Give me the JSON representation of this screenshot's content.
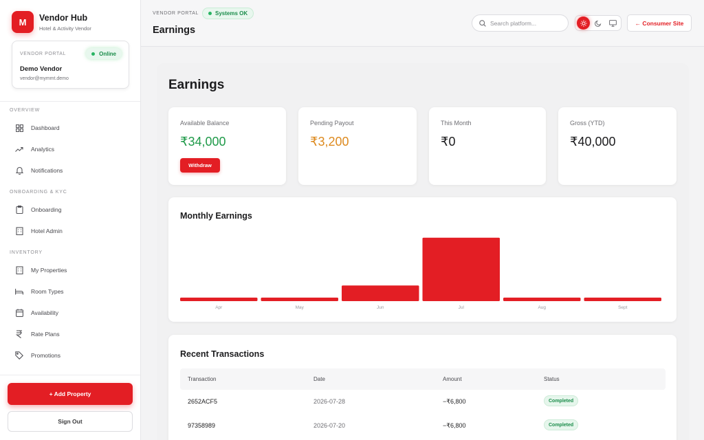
{
  "brand": {
    "logo_letter": "M",
    "name": "Vendor Hub",
    "subtitle": "Hotel & Activity Vendor"
  },
  "vendor_card": {
    "label": "VENDOR PORTAL",
    "status": "Online",
    "name": "Demo Vendor",
    "email": "vendor@mymmt.demo"
  },
  "sidebar": {
    "sections": [
      {
        "title": "OVERVIEW",
        "items": [
          {
            "label": "Dashboard",
            "icon": "grid-icon"
          },
          {
            "label": "Analytics",
            "icon": "trend-icon"
          },
          {
            "label": "Notifications",
            "icon": "bell-icon"
          }
        ]
      },
      {
        "title": "ONBOARDING & KYC",
        "items": [
          {
            "label": "Onboarding",
            "icon": "clipboard-icon"
          },
          {
            "label": "Hotel Admin",
            "icon": "building-icon"
          }
        ]
      },
      {
        "title": "INVENTORY",
        "items": [
          {
            "label": "My Properties",
            "icon": "building-icon"
          },
          {
            "label": "Room Types",
            "icon": "bed-icon"
          },
          {
            "label": "Availability",
            "icon": "calendar-icon"
          },
          {
            "label": "Rate Plans",
            "icon": "rupee-icon"
          },
          {
            "label": "Promotions",
            "icon": "tag-icon"
          }
        ]
      }
    ],
    "add_button": "+ Add Property",
    "signout_button": "Sign Out"
  },
  "header": {
    "portal_label": "VENDOR PORTAL",
    "status": "Systems OK",
    "title": "Earnings",
    "search_placeholder": "Search platform...",
    "theme_modes": [
      "light",
      "dark",
      "system"
    ],
    "active_theme": "light",
    "consumer_button": "← Consumer Site"
  },
  "page": {
    "title": "Earnings"
  },
  "stats": [
    {
      "label": "Available Balance",
      "value": "₹34,000",
      "color": "#1f9a49",
      "action": "Withdraw"
    },
    {
      "label": "Pending Payout",
      "value": "₹3,200",
      "color": "#dd8a1f"
    },
    {
      "label": "This Month",
      "value": "₹0",
      "color": "#1c1c1e"
    },
    {
      "label": "Gross (YTD)",
      "value": "₹40,000",
      "color": "#1c1c1e"
    }
  ],
  "chart_data": {
    "type": "bar",
    "title": "Monthly Earnings",
    "categories": [
      "Apr",
      "May",
      "Jun",
      "Jul",
      "Aug",
      "Sept"
    ],
    "values": [
      1500,
      1500,
      6600,
      26800,
      1500,
      1500
    ],
    "ylim": [
      0,
      27000
    ],
    "color": "#e31e24",
    "grid": false,
    "legend": "none"
  },
  "transactions": {
    "title": "Recent Transactions",
    "columns": [
      "Transaction",
      "Date",
      "Amount",
      "Status"
    ],
    "rows": [
      {
        "id": "2652ACF5",
        "date": "2026-07-28",
        "amount": "−₹6,800",
        "status": "Completed"
      },
      {
        "id": "97358989",
        "date": "2026-07-20",
        "amount": "−₹6,800",
        "status": "Completed"
      }
    ]
  },
  "colors": {
    "accent": "#e31e24",
    "success": "#28b463",
    "warning": "#dd8a1f"
  }
}
